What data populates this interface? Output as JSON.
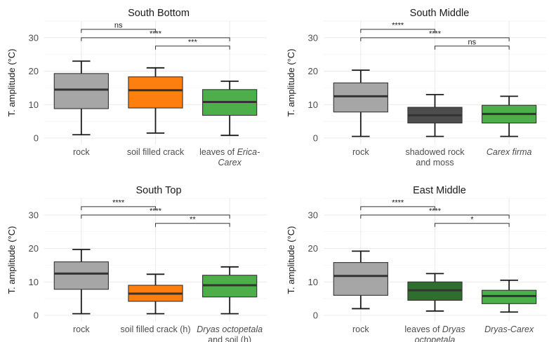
{
  "figure": {
    "ylabel": "T. amplitude (°C)"
  },
  "chart_data": [
    {
      "type": "box",
      "title": "South Bottom",
      "ylabel": "T. amplitude (°C)",
      "ylim": [
        0,
        35
      ],
      "yticks": [
        0,
        10,
        20,
        30
      ],
      "grid": true,
      "categories": [
        {
          "label": [
            "rock"
          ],
          "italic": [
            [
              false
            ]
          ]
        },
        {
          "label": [
            "soil filled crack"
          ],
          "italic": [
            [
              false
            ]
          ]
        },
        {
          "label": [
            "leaves of Erica-",
            "Carex"
          ],
          "italic": [
            [
              false,
              true
            ],
            [
              true
            ]
          ],
          "parts": [
            [
              "leaves of ",
              "Erica-"
            ],
            [
              "Carex"
            ]
          ]
        }
      ],
      "boxes": [
        {
          "min": 1.0,
          "q1": 8.8,
          "median": 14.5,
          "q3": 19.3,
          "max": 23.0,
          "color": "#a6a6a6"
        },
        {
          "min": 1.5,
          "q1": 9.0,
          "median": 14.3,
          "q3": 18.3,
          "max": 21.0,
          "color": "#ff7f0e"
        },
        {
          "min": 0.8,
          "q1": 6.8,
          "median": 10.8,
          "q3": 14.5,
          "max": 17.0,
          "color": "#4daf4a"
        }
      ],
      "significance": [
        {
          "from": 0,
          "to": 1,
          "label": "ns",
          "level": 0
        },
        {
          "from": 0,
          "to": 2,
          "label": "****",
          "level": 1
        },
        {
          "from": 1,
          "to": 2,
          "label": "***",
          "level": 2
        }
      ]
    },
    {
      "type": "box",
      "title": "South Middle",
      "ylabel": "T. amplitude (°C)",
      "ylim": [
        0,
        35
      ],
      "yticks": [
        0,
        10,
        20,
        30
      ],
      "grid": true,
      "categories": [
        {
          "parts": [
            [
              "rock"
            ]
          ],
          "italic": [
            [
              false
            ]
          ]
        },
        {
          "parts": [
            [
              "shadowed rock"
            ],
            [
              "and moss"
            ]
          ],
          "italic": [
            [
              false
            ],
            [
              false
            ]
          ]
        },
        {
          "parts": [
            [
              "Carex firma"
            ]
          ],
          "italic": [
            [
              true
            ]
          ]
        }
      ],
      "boxes": [
        {
          "min": 0.5,
          "q1": 7.8,
          "median": 12.5,
          "q3": 16.5,
          "max": 20.3,
          "color": "#a6a6a6"
        },
        {
          "min": 0.5,
          "q1": 4.5,
          "median": 6.8,
          "q3": 9.2,
          "max": 13.0,
          "color": "#4d4d4d"
        },
        {
          "min": 0.5,
          "q1": 4.5,
          "median": 7.2,
          "q3": 9.8,
          "max": 12.5,
          "color": "#4daf4a"
        }
      ],
      "significance": [
        {
          "from": 0,
          "to": 1,
          "label": "****",
          "level": 0
        },
        {
          "from": 0,
          "to": 2,
          "label": "****",
          "level": 1
        },
        {
          "from": 1,
          "to": 2,
          "label": "ns",
          "level": 2
        }
      ]
    },
    {
      "type": "box",
      "title": "South Top",
      "ylabel": "T. amplitude (°C)",
      "ylim": [
        0,
        35
      ],
      "yticks": [
        0,
        10,
        20,
        30
      ],
      "grid": true,
      "categories": [
        {
          "parts": [
            [
              "rock"
            ]
          ],
          "italic": [
            [
              false
            ]
          ]
        },
        {
          "parts": [
            [
              "soil filled crack (h)"
            ]
          ],
          "italic": [
            [
              false
            ]
          ]
        },
        {
          "parts": [
            [
              "Dryas octopetala"
            ],
            [
              "and soil (h)"
            ]
          ],
          "italic": [
            [
              true
            ],
            [
              false
            ]
          ]
        }
      ],
      "boxes": [
        {
          "min": 0.5,
          "q1": 7.8,
          "median": 12.5,
          "q3": 16.0,
          "max": 19.7,
          "color": "#a6a6a6"
        },
        {
          "min": 0.5,
          "q1": 4.2,
          "median": 6.5,
          "q3": 9.0,
          "max": 12.3,
          "color": "#ff7f0e"
        },
        {
          "min": 0.5,
          "q1": 5.5,
          "median": 9.0,
          "q3": 12.0,
          "max": 14.5,
          "color": "#4daf4a"
        }
      ],
      "significance": [
        {
          "from": 0,
          "to": 1,
          "label": "****",
          "level": 0
        },
        {
          "from": 0,
          "to": 2,
          "label": "****",
          "level": 1
        },
        {
          "from": 1,
          "to": 2,
          "label": "**",
          "level": 2
        }
      ]
    },
    {
      "type": "box",
      "title": "East Middle",
      "ylabel": "T. amplitude (°C)",
      "ylim": [
        0,
        35
      ],
      "yticks": [
        0,
        10,
        20,
        30
      ],
      "grid": true,
      "categories": [
        {
          "parts": [
            [
              "rock"
            ]
          ],
          "italic": [
            [
              false
            ]
          ]
        },
        {
          "parts": [
            [
              "leaves of ",
              "Dryas"
            ],
            [
              "octopetala"
            ]
          ],
          "italic": [
            [
              false,
              true
            ],
            [
              true
            ]
          ]
        },
        {
          "parts": [
            [
              "Dryas-Carex"
            ]
          ],
          "italic": [
            [
              true
            ]
          ]
        }
      ],
      "boxes": [
        {
          "min": 2.0,
          "q1": 6.0,
          "median": 11.8,
          "q3": 15.8,
          "max": 19.2,
          "color": "#a6a6a6"
        },
        {
          "min": 1.3,
          "q1": 4.5,
          "median": 7.5,
          "q3": 10.0,
          "max": 12.5,
          "color": "#2e6e2e"
        },
        {
          "min": 1.0,
          "q1": 3.5,
          "median": 5.8,
          "q3": 7.5,
          "max": 10.5,
          "color": "#4daf4a"
        }
      ],
      "significance": [
        {
          "from": 0,
          "to": 1,
          "label": "****",
          "level": 0
        },
        {
          "from": 0,
          "to": 2,
          "label": "****",
          "level": 1
        },
        {
          "from": 1,
          "to": 2,
          "label": "*",
          "level": 2
        }
      ]
    }
  ]
}
